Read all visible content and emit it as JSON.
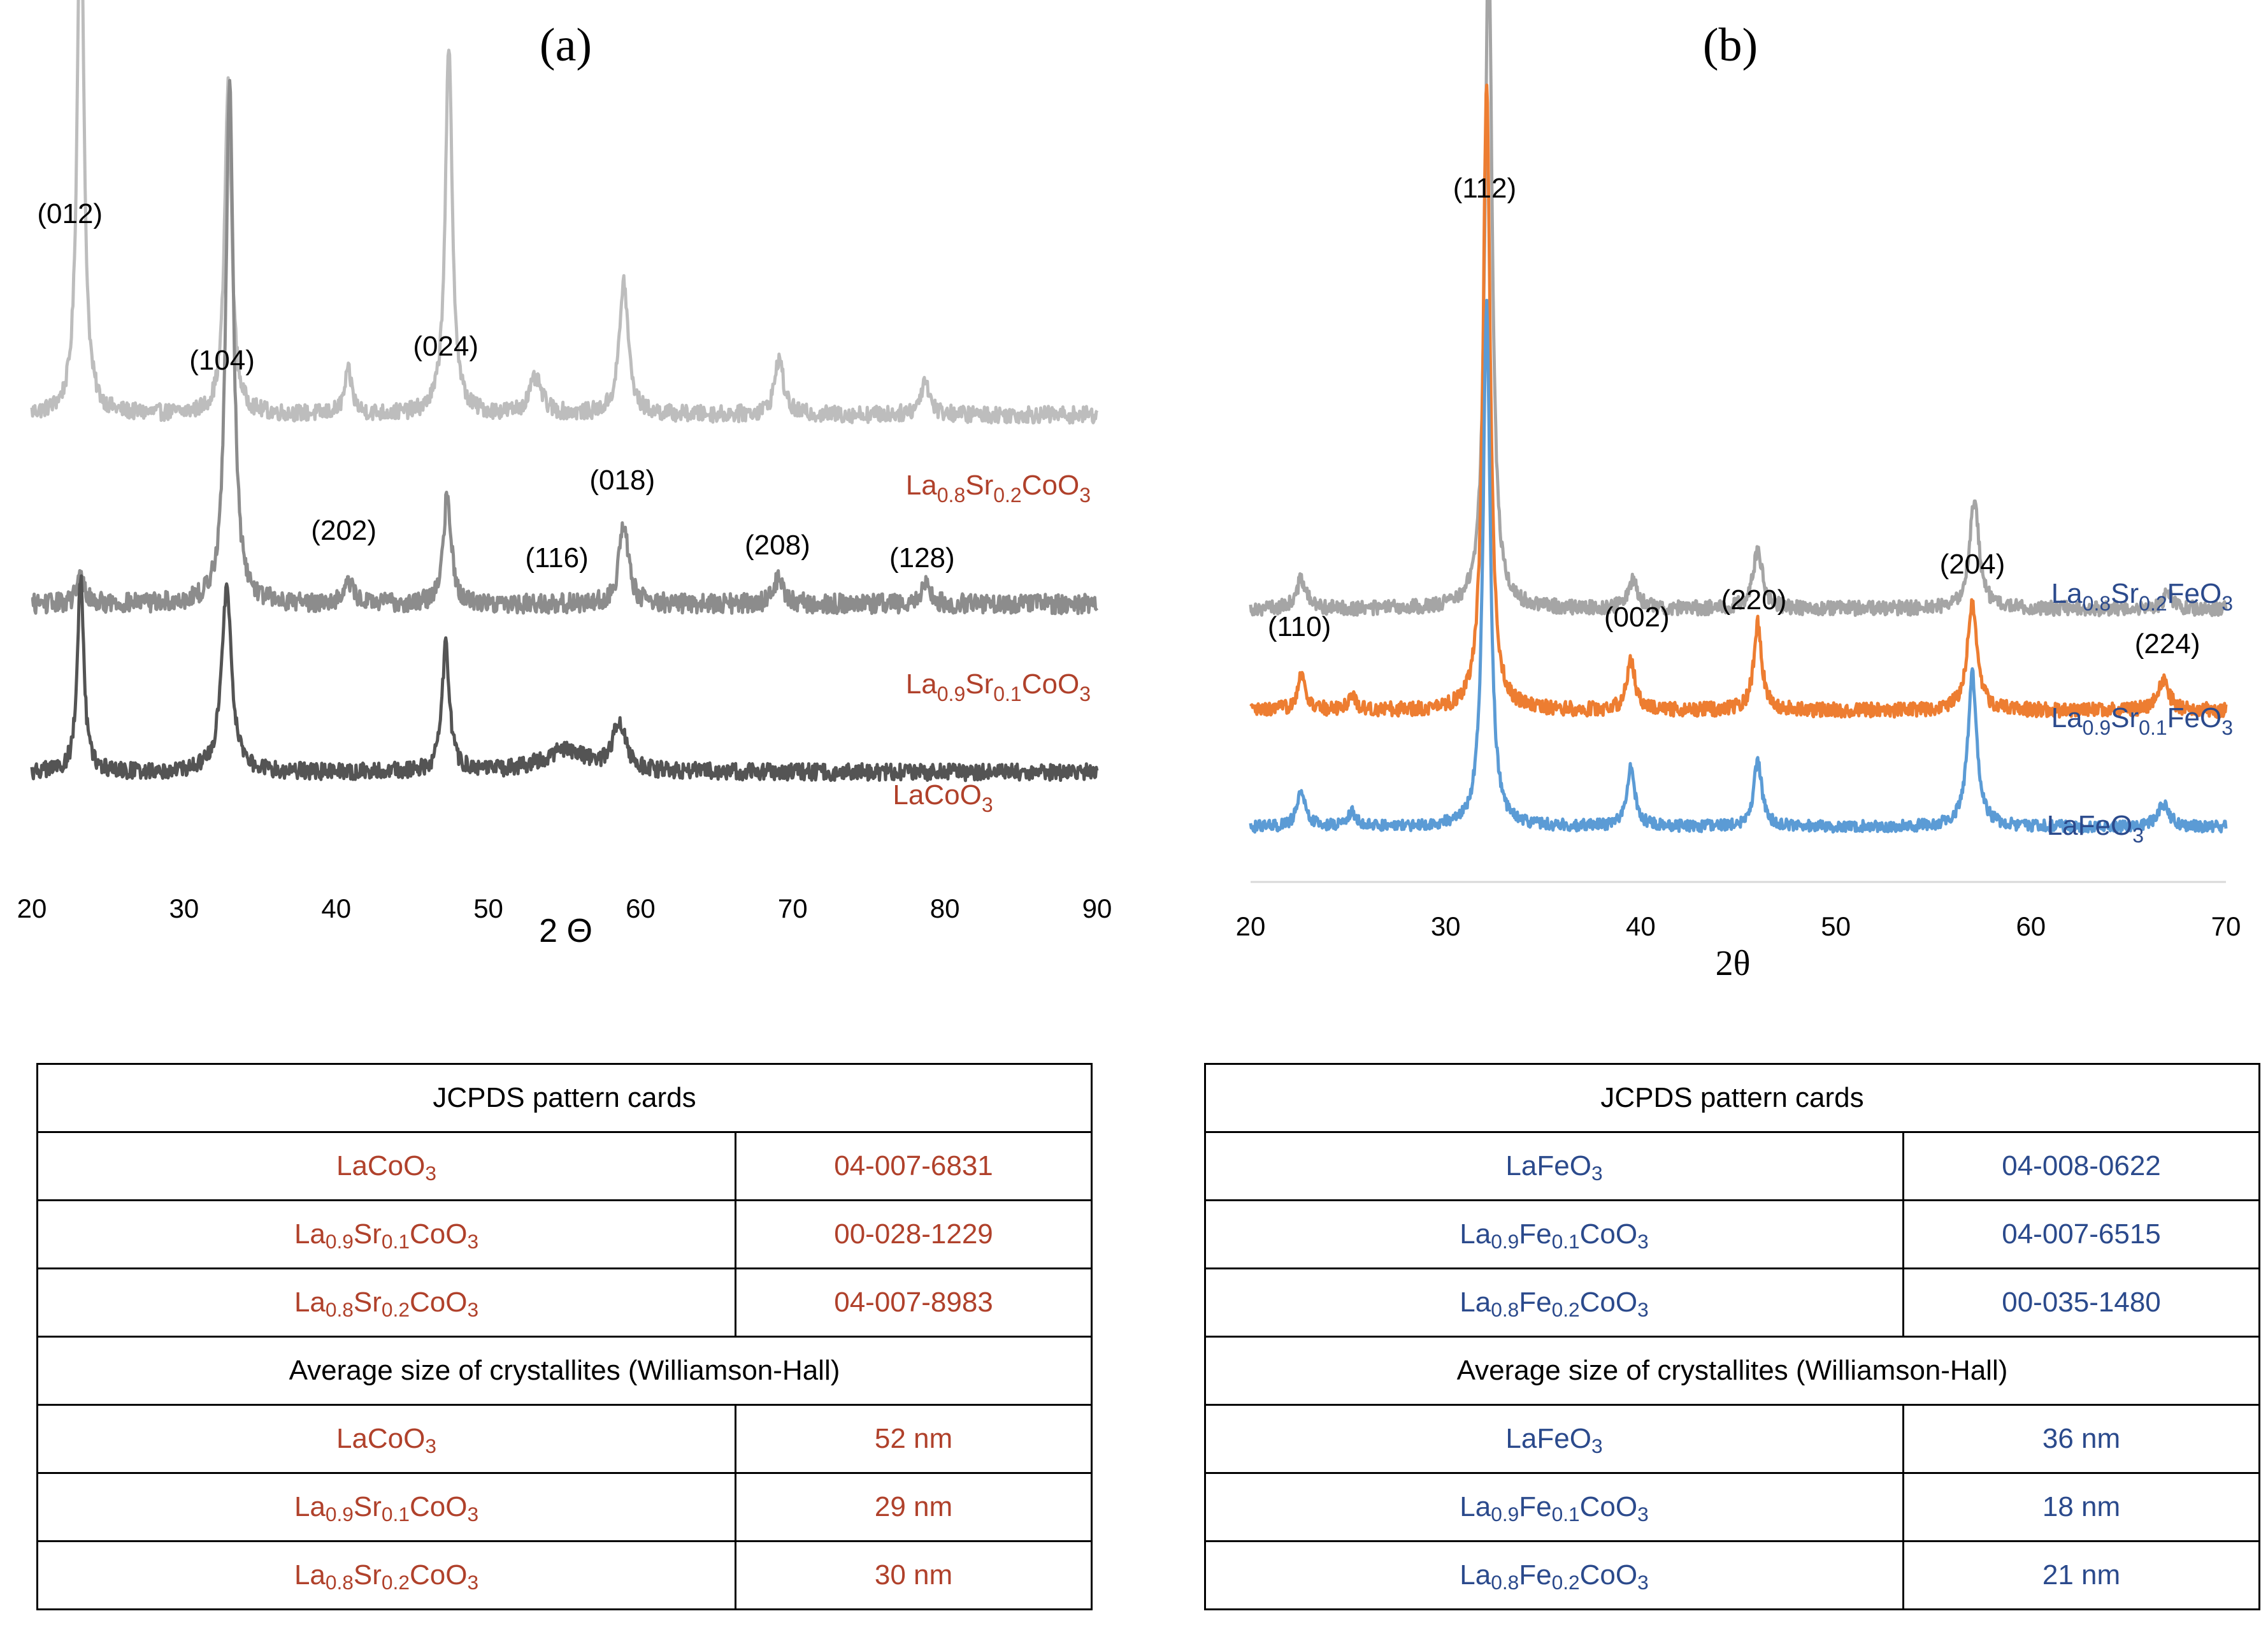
{
  "chart_data": [
    {
      "type": "line",
      "panel_label": "(a)",
      "xlabel": "2 Θ",
      "xlim": [
        20,
        90
      ],
      "xticks": [
        20,
        30,
        40,
        50,
        60,
        70,
        80,
        90
      ],
      "yaxis_visible": false,
      "colors": {
        "lasr02": "#bdbdbd",
        "lasr01": "#8c8c8c",
        "lacoo3": "#545454",
        "label": "#b0412b"
      },
      "series": [
        {
          "key": "lasr02",
          "name": "La0.8Sr0.2CoO3",
          "label_base": "La",
          "label_sub1": "0.8",
          "label_mid": "Sr",
          "label_sub2": "0.2",
          "label_tail": "CoO",
          "label_sub3": "3",
          "baseline": 0.61,
          "noise": 0.012,
          "peaks": [
            [
              23.2,
              0.8,
              0.25
            ],
            [
              32.9,
              0.47,
              0.28
            ],
            [
              40.8,
              0.06,
              0.3
            ],
            [
              47.4,
              0.52,
              0.28
            ],
            [
              53.1,
              0.05,
              0.5
            ],
            [
              58.9,
              0.19,
              0.35
            ],
            [
              69.1,
              0.08,
              0.35
            ],
            [
              78.7,
              0.05,
              0.35
            ]
          ]
        },
        {
          "key": "lasr01",
          "name": "La0.9Sr0.1CoO3",
          "label_base": "La",
          "label_sub1": "0.9",
          "label_mid": "Sr",
          "label_sub2": "0.1",
          "label_tail": "CoO",
          "label_sub3": "3",
          "baseline": 0.34,
          "noise": 0.014,
          "peaks": [
            [
              23.2,
              0.04,
              0.3
            ],
            [
              33.0,
              0.75,
              0.3
            ],
            [
              40.8,
              0.03,
              0.4
            ],
            [
              47.3,
              0.16,
              0.3
            ],
            [
              58.9,
              0.12,
              0.35
            ],
            [
              69.1,
              0.04,
              0.35
            ],
            [
              78.7,
              0.03,
              0.35
            ]
          ]
        },
        {
          "key": "lacoo3",
          "name": "LaCoO3",
          "label_base": "LaCoO",
          "label_sub1": "3",
          "baseline": 0.1,
          "noise": 0.012,
          "peaks": [
            [
              23.2,
              0.28,
              0.25
            ],
            [
              32.8,
              0.26,
              0.4
            ],
            [
              47.2,
              0.18,
              0.3
            ],
            [
              55.0,
              0.03,
              1.8
            ],
            [
              58.6,
              0.07,
              0.5
            ]
          ]
        }
      ],
      "peak_labels": [
        {
          "text": "(012)",
          "x": 22.5
        },
        {
          "text": "(104)",
          "x": 32.5
        },
        {
          "text": "(202)",
          "x": 40.5
        },
        {
          "text": "(024)",
          "x": 47.2
        },
        {
          "text": "(116)",
          "x": 54.5
        },
        {
          "text": "(018)",
          "x": 58.8
        },
        {
          "text": "(208)",
          "x": 69.0
        },
        {
          "text": "(128)",
          "x": 78.5
        }
      ]
    },
    {
      "type": "line",
      "panel_label": "(b)",
      "xlabel": "2θ",
      "xlim": [
        20,
        70
      ],
      "xticks": [
        20,
        30,
        40,
        50,
        60,
        70
      ],
      "yaxis_visible": false,
      "colors": {
        "lasr02": "#a5a5a5",
        "lasr01": "#ed7d31",
        "lafeo3": "#5b9bd5",
        "label": "#2b4a8c"
      },
      "series": [
        {
          "key": "lasr02",
          "name": "La0.8Sr0.2FeO3",
          "label_base": "La",
          "label_sub1": "0.8",
          "label_mid": "Sr",
          "label_sub2": "0.2",
          "label_tail": "FeO",
          "label_sub3": "3",
          "baseline": 0.36,
          "noise": 0.01,
          "peaks": [
            [
              22.6,
              0.04,
              0.3
            ],
            [
              32.2,
              0.93,
              0.22
            ],
            [
              39.6,
              0.04,
              0.3
            ],
            [
              46.0,
              0.08,
              0.3
            ],
            [
              57.1,
              0.15,
              0.3
            ],
            [
              67.0,
              0.02,
              0.3
            ]
          ]
        },
        {
          "key": "lasr01",
          "name": "La0.9Sr0.1FeO3",
          "label_base": "La",
          "label_sub1": "0.9",
          "label_mid": "Sr",
          "label_sub2": "0.1",
          "label_tail": "FeO",
          "label_sub3": "3",
          "baseline": 0.22,
          "noise": 0.01,
          "peaks": [
            [
              22.6,
              0.05,
              0.25
            ],
            [
              25.2,
              0.02,
              0.25
            ],
            [
              32.1,
              0.86,
              0.22
            ],
            [
              39.5,
              0.07,
              0.25
            ],
            [
              46.0,
              0.12,
              0.25
            ],
            [
              57.0,
              0.15,
              0.3
            ],
            [
              66.8,
              0.04,
              0.35
            ]
          ]
        },
        {
          "key": "lafeo3",
          "name": "LaFeO3",
          "label_base": "LaFeO",
          "label_sub1": "3",
          "baseline": 0.06,
          "noise": 0.008,
          "peaks": [
            [
              22.6,
              0.05,
              0.25
            ],
            [
              25.2,
              0.02,
              0.25
            ],
            [
              32.1,
              0.72,
              0.22
            ],
            [
              39.5,
              0.08,
              0.25
            ],
            [
              46.0,
              0.09,
              0.25
            ],
            [
              57.0,
              0.21,
              0.28
            ],
            [
              66.8,
              0.03,
              0.35
            ]
          ]
        }
      ],
      "peak_labels": [
        {
          "text": "(110)",
          "x": 22.5
        },
        {
          "text": "(112)",
          "x": 32.0
        },
        {
          "text": "(002)",
          "x": 39.8
        },
        {
          "text": "(220)",
          "x": 45.8
        },
        {
          "text": "(204)",
          "x": 57.0
        },
        {
          "text": "(224)",
          "x": 67.0
        }
      ]
    }
  ],
  "tables": {
    "left": {
      "section1_title": "JCPDS pattern cards",
      "section2_title": "Average size of crystallites (Williamson-Hall)",
      "cards": [
        {
          "base": "LaCoO",
          "s1": "3",
          "mid": "",
          "s2": "",
          "tail": "",
          "s3": "",
          "value": "04-007-6831"
        },
        {
          "base": "La",
          "s1": "0.9",
          "mid": "Sr",
          "s2": "0.1",
          "tail": "CoO",
          "s3": "3",
          "value": "00-028-1229"
        },
        {
          "base": "La",
          "s1": "0.8",
          "mid": "Sr",
          "s2": "0.2",
          "tail": "CoO",
          "s3": "3",
          "value": "04-007-8983"
        }
      ],
      "sizes": [
        {
          "base": "LaCoO",
          "s1": "3",
          "mid": "",
          "s2": "",
          "tail": "",
          "s3": "",
          "value": "52 nm"
        },
        {
          "base": "La",
          "s1": "0.9",
          "mid": "Sr",
          "s2": "0.1",
          "tail": "CoO",
          "s3": "3",
          "value": "29 nm"
        },
        {
          "base": "La",
          "s1": "0.8",
          "mid": "Sr",
          "s2": "0.2",
          "tail": "CoO",
          "s3": "3",
          "value": "30 nm"
        }
      ]
    },
    "right": {
      "section1_title": "JCPDS pattern cards",
      "section2_title": "Average size of crystallites (Williamson-Hall)",
      "cards": [
        {
          "base": "LaFeO",
          "s1": "3",
          "mid": "",
          "s2": "",
          "tail": "",
          "s3": "",
          "value": "04-008-0622"
        },
        {
          "base": "La",
          "s1": "0.9",
          "mid": "Fe",
          "s2": "0.1",
          "tail": "CoO",
          "s3": "3",
          "value": "04-007-6515"
        },
        {
          "base": "La",
          "s1": "0.8",
          "mid": "Fe",
          "s2": "0.2",
          "tail": "CoO",
          "s3": "3",
          "value": "00-035-1480"
        }
      ],
      "sizes": [
        {
          "base": "LaFeO",
          "s1": "3",
          "mid": "",
          "s2": "",
          "tail": "",
          "s3": "",
          "value": "36 nm"
        },
        {
          "base": "La",
          "s1": "0.9",
          "mid": "Fe",
          "s2": "0.1",
          "tail": "CoO",
          "s3": "3",
          "value": "18 nm"
        },
        {
          "base": "La",
          "s1": "0.8",
          "mid": "Fe",
          "s2": "0.2",
          "tail": "CoO",
          "s3": "3",
          "value": "21 nm"
        }
      ]
    }
  }
}
